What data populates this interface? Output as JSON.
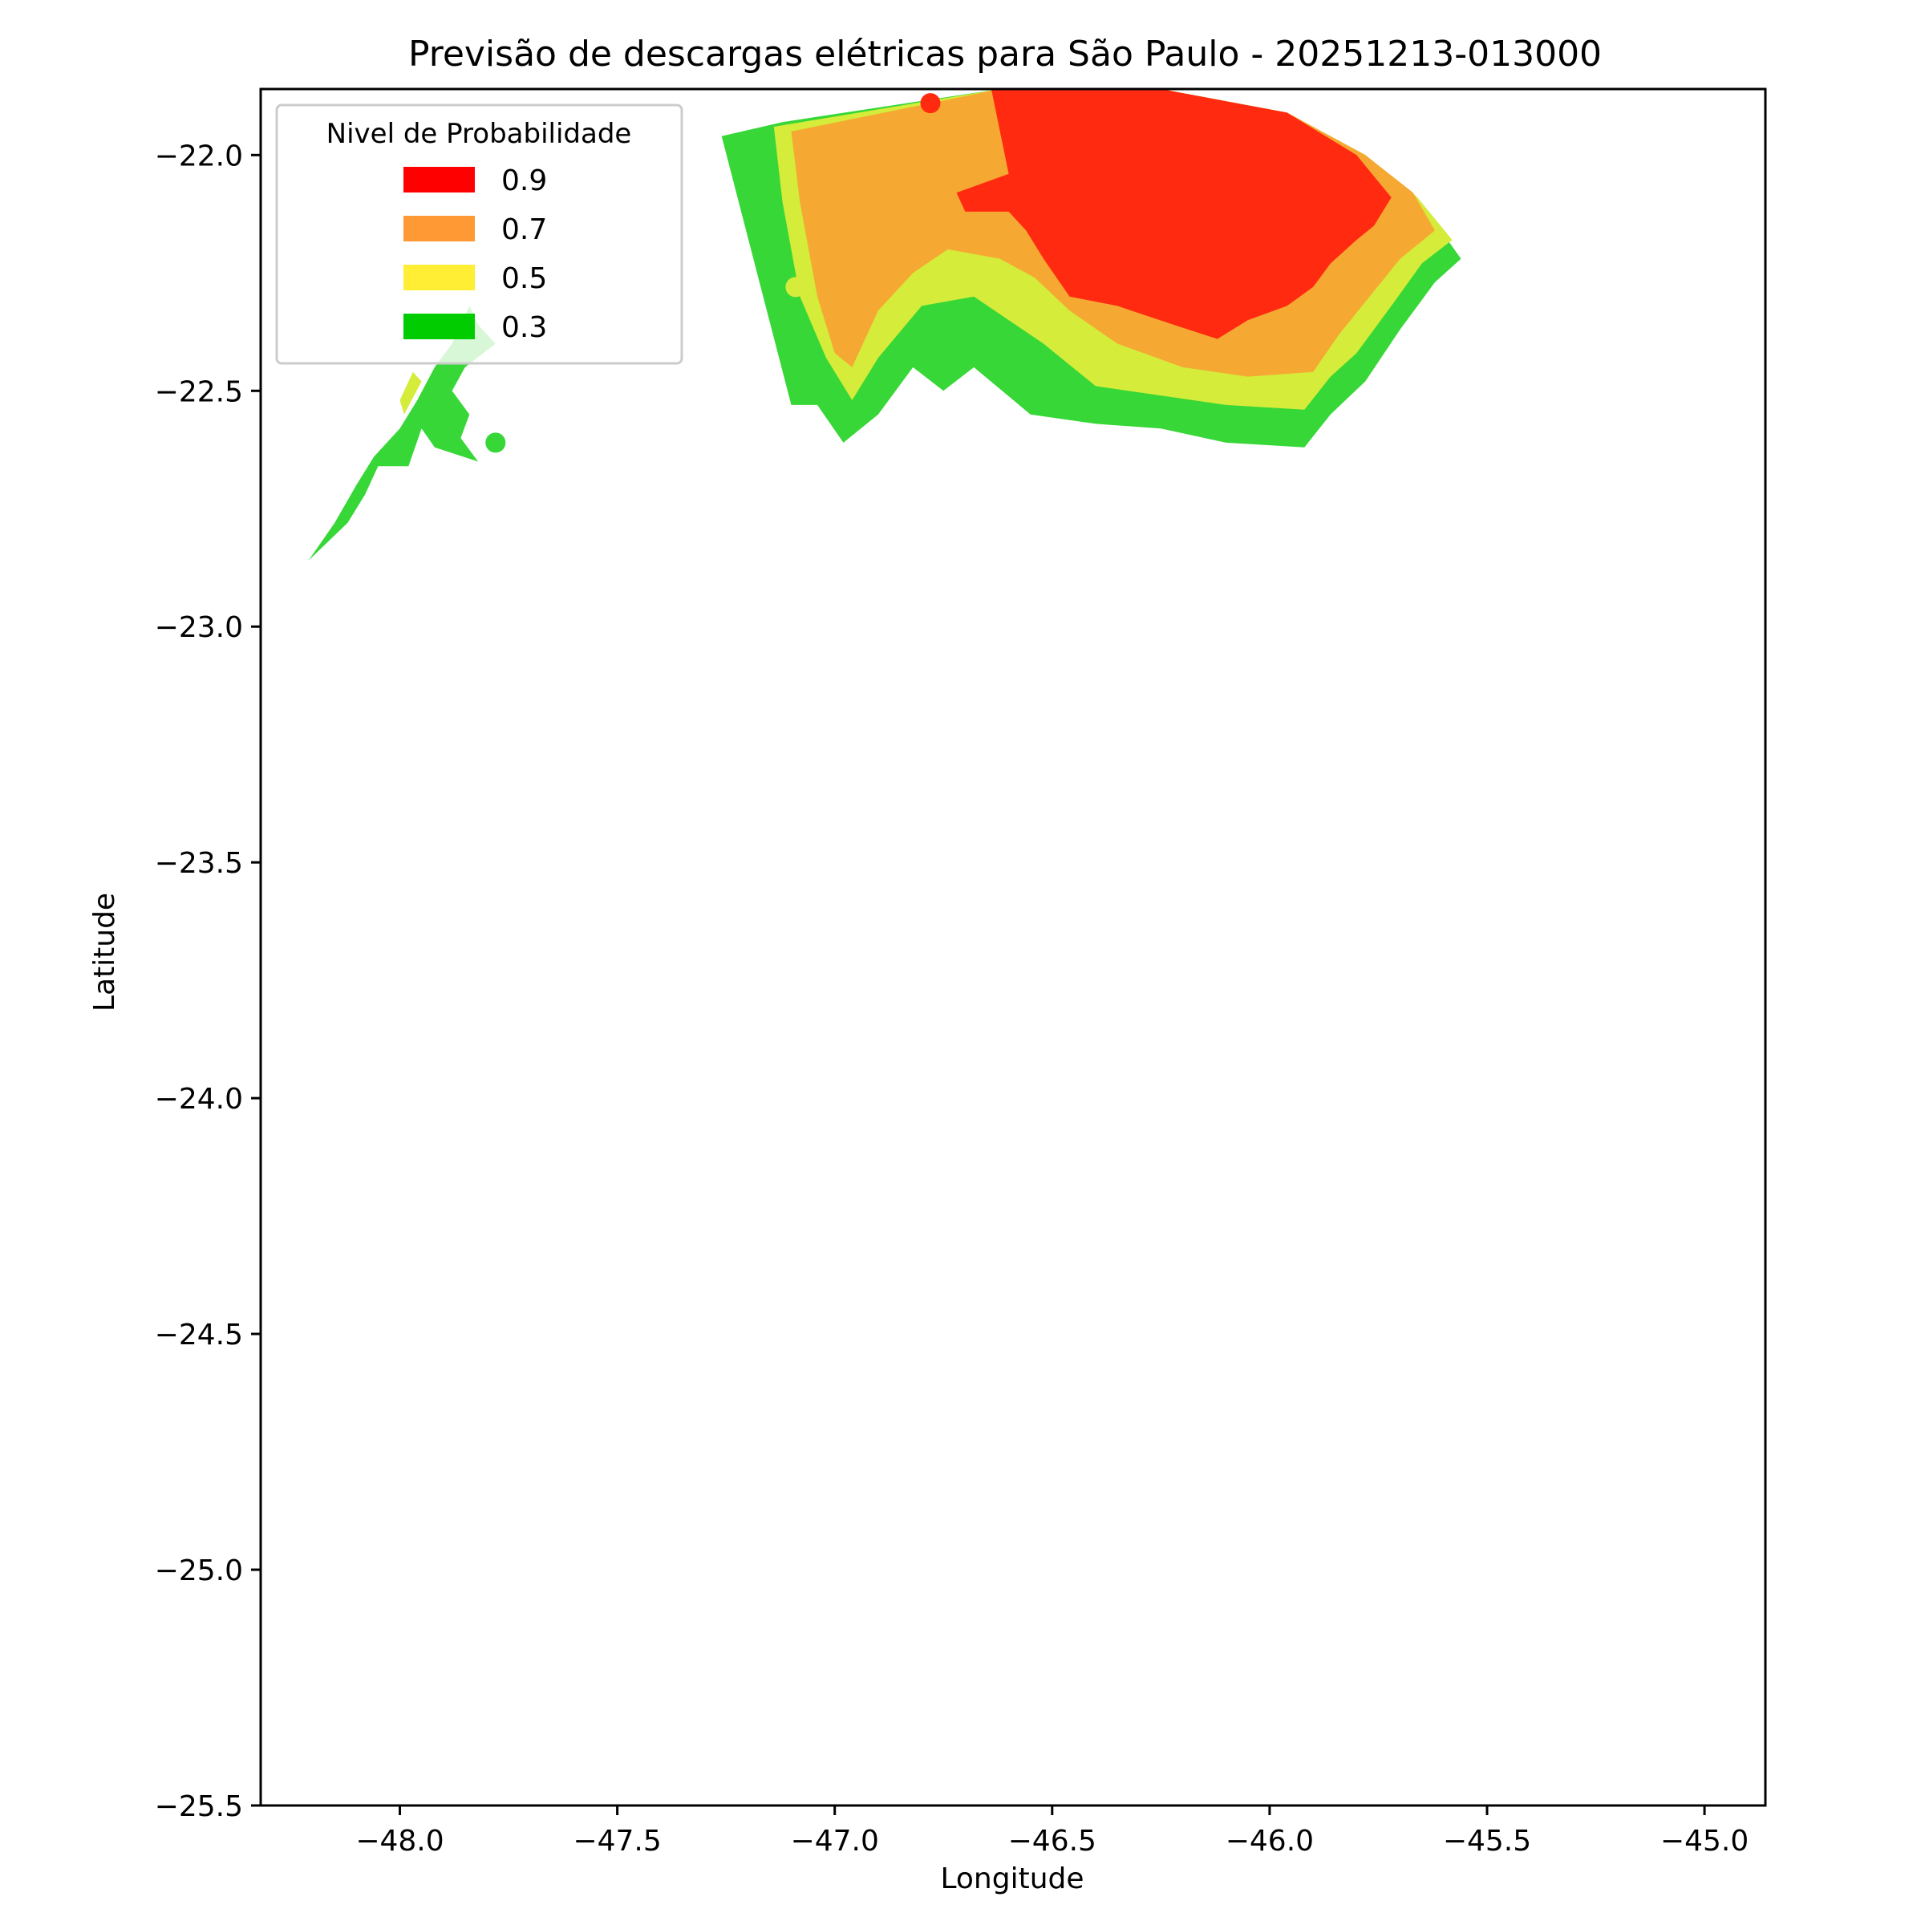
{
  "chart_data": {
    "type": "contour-map",
    "title": "Previsão de descargas elétricas para São Paulo - 20251213-013000",
    "xlabel": "Longitude",
    "ylabel": "Latitude",
    "xlim": [
      -48.32,
      -44.86
    ],
    "ylim": [
      -25.5,
      -21.86
    ],
    "xticks": [
      -48.0,
      -47.5,
      -47.0,
      -46.5,
      -46.0,
      -45.5,
      -45.0
    ],
    "xtick_labels": [
      "−48.0",
      "−47.5",
      "−47.0",
      "−46.5",
      "−46.0",
      "−45.5",
      "−45.0"
    ],
    "yticks": [
      -22.0,
      -22.5,
      -23.0,
      -23.5,
      -24.0,
      -24.5,
      -25.0,
      -25.5
    ],
    "ytick_labels": [
      "−22.0",
      "−22.5",
      "−23.0",
      "−23.5",
      "−24.0",
      "−24.5",
      "−25.0",
      "−25.5"
    ],
    "legend": {
      "title": "Nivel de Probabilidade",
      "location": "upper-left",
      "entries": [
        {
          "label": "0.9",
          "color": "#ff0000"
        },
        {
          "label": "0.7",
          "color": "#ff9933"
        },
        {
          "label": "0.5",
          "color": "#ffee33"
        },
        {
          "label": "0.3",
          "color": "#00cc00"
        }
      ]
    },
    "regions": [
      {
        "name": "main-cell-0.3",
        "level": 0.3,
        "color": "#37d737",
        "points": [
          [
            -47.26,
            -21.96
          ],
          [
            -47.12,
            -21.93
          ],
          [
            -46.62,
            -21.86
          ],
          [
            -46.25,
            -21.86
          ],
          [
            -45.96,
            -21.91
          ],
          [
            -45.78,
            -22.0
          ],
          [
            -45.66,
            -22.09
          ],
          [
            -45.56,
            -22.22
          ],
          [
            -45.62,
            -22.27
          ],
          [
            -45.7,
            -22.37
          ],
          [
            -45.78,
            -22.48
          ],
          [
            -45.86,
            -22.55
          ],
          [
            -45.92,
            -22.62
          ],
          [
            -46.1,
            -22.61
          ],
          [
            -46.25,
            -22.58
          ],
          [
            -46.4,
            -22.57
          ],
          [
            -46.55,
            -22.55
          ],
          [
            -46.68,
            -22.45
          ],
          [
            -46.75,
            -22.5
          ],
          [
            -46.82,
            -22.45
          ],
          [
            -46.9,
            -22.55
          ],
          [
            -46.98,
            -22.61
          ],
          [
            -47.04,
            -22.53
          ],
          [
            -47.1,
            -22.53
          ]
        ]
      },
      {
        "name": "main-cell-0.5",
        "level": 0.5,
        "color": "#d5ec3a",
        "points": [
          [
            -47.14,
            -21.94
          ],
          [
            -46.62,
            -21.86
          ],
          [
            -46.25,
            -21.86
          ],
          [
            -45.96,
            -21.91
          ],
          [
            -45.78,
            -22.0
          ],
          [
            -45.66,
            -22.09
          ],
          [
            -45.58,
            -22.18
          ],
          [
            -45.65,
            -22.23
          ],
          [
            -45.72,
            -22.32
          ],
          [
            -45.8,
            -22.42
          ],
          [
            -45.86,
            -22.47
          ],
          [
            -45.92,
            -22.54
          ],
          [
            -46.1,
            -22.53
          ],
          [
            -46.25,
            -22.51
          ],
          [
            -46.4,
            -22.49
          ],
          [
            -46.52,
            -22.4
          ],
          [
            -46.6,
            -22.35
          ],
          [
            -46.68,
            -22.3
          ],
          [
            -46.8,
            -22.32
          ],
          [
            -46.9,
            -22.43
          ],
          [
            -46.96,
            -22.52
          ],
          [
            -47.02,
            -22.43
          ],
          [
            -47.08,
            -22.3
          ],
          [
            -47.12,
            -22.1
          ]
        ]
      },
      {
        "name": "main-cell-0.7",
        "level": 0.7,
        "color": "#f5a933",
        "points": [
          [
            -47.1,
            -21.95
          ],
          [
            -46.62,
            -21.86
          ],
          [
            -46.25,
            -21.86
          ],
          [
            -45.96,
            -21.91
          ],
          [
            -45.78,
            -22.0
          ],
          [
            -45.67,
            -22.08
          ],
          [
            -45.62,
            -22.16
          ],
          [
            -45.7,
            -22.22
          ],
          [
            -45.77,
            -22.3
          ],
          [
            -45.84,
            -22.38
          ],
          [
            -45.9,
            -22.46
          ],
          [
            -46.05,
            -22.47
          ],
          [
            -46.2,
            -22.45
          ],
          [
            -46.35,
            -22.4
          ],
          [
            -46.46,
            -22.33
          ],
          [
            -46.54,
            -22.26
          ],
          [
            -46.62,
            -22.22
          ],
          [
            -46.74,
            -22.2
          ],
          [
            -46.82,
            -22.25
          ],
          [
            -46.9,
            -22.33
          ],
          [
            -46.96,
            -22.45
          ],
          [
            -47.0,
            -22.42
          ],
          [
            -47.04,
            -22.3
          ],
          [
            -47.08,
            -22.1
          ]
        ]
      },
      {
        "name": "main-cell-0.9",
        "level": 0.9,
        "color": "#ff2a10",
        "points": [
          [
            -46.64,
            -21.86
          ],
          [
            -46.25,
            -21.86
          ],
          [
            -45.96,
            -21.91
          ],
          [
            -45.8,
            -22.0
          ],
          [
            -45.72,
            -22.09
          ],
          [
            -45.76,
            -22.15
          ],
          [
            -45.8,
            -22.18
          ],
          [
            -45.86,
            -22.23
          ],
          [
            -45.9,
            -22.28
          ],
          [
            -45.96,
            -22.32
          ],
          [
            -46.05,
            -22.35
          ],
          [
            -46.12,
            -22.39
          ],
          [
            -46.22,
            -22.36
          ],
          [
            -46.35,
            -22.32
          ],
          [
            -46.46,
            -22.3
          ],
          [
            -46.52,
            -22.22
          ],
          [
            -46.56,
            -22.16
          ],
          [
            -46.6,
            -22.12
          ],
          [
            -46.7,
            -22.12
          ],
          [
            -46.72,
            -22.08
          ],
          [
            -46.6,
            -22.04
          ]
        ]
      },
      {
        "name": "west-cell-0.3",
        "level": 0.3,
        "color": "#37d737",
        "points": [
          [
            -48.21,
            -22.86
          ],
          [
            -48.15,
            -22.78
          ],
          [
            -48.1,
            -22.7
          ],
          [
            -48.06,
            -22.64
          ],
          [
            -48.0,
            -22.58
          ],
          [
            -47.96,
            -22.52
          ],
          [
            -47.92,
            -22.45
          ],
          [
            -47.88,
            -22.4
          ],
          [
            -47.84,
            -22.32
          ],
          [
            -47.82,
            -22.36
          ],
          [
            -47.78,
            -22.4
          ],
          [
            -47.85,
            -22.45
          ],
          [
            -47.88,
            -22.5
          ],
          [
            -47.84,
            -22.55
          ],
          [
            -47.86,
            -22.6
          ],
          [
            -47.82,
            -22.65
          ],
          [
            -47.92,
            -22.62
          ],
          [
            -47.95,
            -22.58
          ],
          [
            -47.98,
            -22.66
          ],
          [
            -48.05,
            -22.66
          ],
          [
            -48.08,
            -22.72
          ],
          [
            -48.12,
            -22.78
          ]
        ]
      },
      {
        "name": "west-cell-0.5-edge",
        "level": 0.5,
        "color": "#d5ec3a",
        "points": [
          [
            -48.0,
            -22.52
          ],
          [
            -47.97,
            -22.46
          ],
          [
            -47.95,
            -22.48
          ],
          [
            -47.99,
            -22.55
          ]
        ]
      }
    ],
    "points": [
      {
        "name": "red-point",
        "level": 0.9,
        "lon": -46.78,
        "lat": -21.89,
        "color": "#ff2a10"
      },
      {
        "name": "yellow-point",
        "level": 0.5,
        "lon": -47.09,
        "lat": -22.28,
        "color": "#d5ec3a"
      },
      {
        "name": "green-point",
        "level": 0.3,
        "lon": -47.78,
        "lat": -22.61,
        "color": "#37d737"
      }
    ]
  }
}
